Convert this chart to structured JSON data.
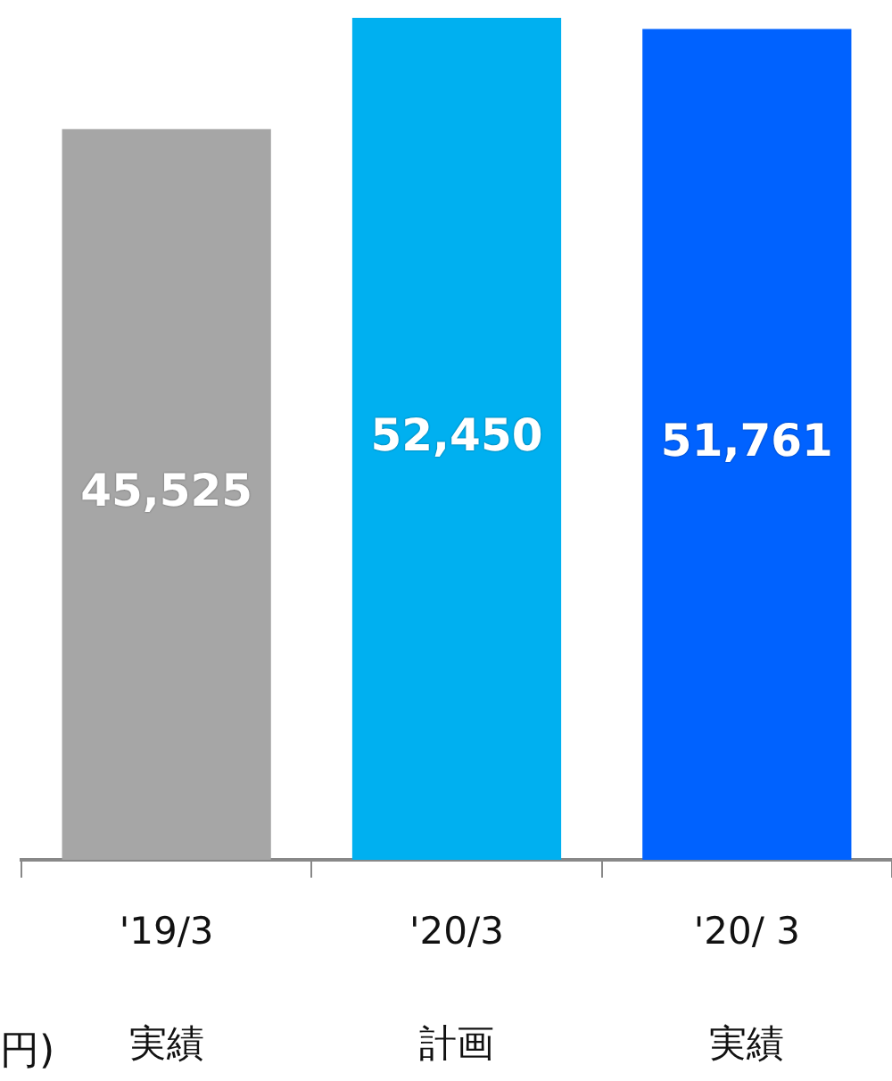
{
  "chart_data": {
    "type": "bar",
    "categories": [
      "'19/3\n実績",
      "'20/3\n計画",
      "'20/ 3\n実績"
    ],
    "values": [
      45525,
      52450,
      51761
    ],
    "value_labels": [
      "45,525",
      "52,450",
      "51,761"
    ],
    "colors": [
      "#a6a6a6",
      "#00b0f0",
      "#0062ff"
    ],
    "legend": false,
    "annotations": [
      "円)"
    ]
  }
}
